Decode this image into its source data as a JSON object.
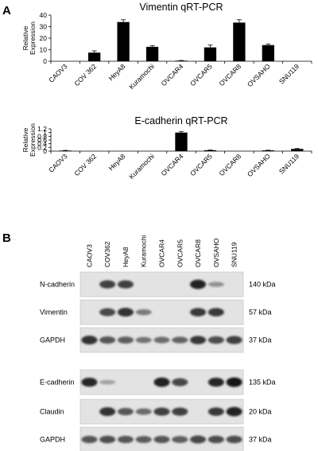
{
  "panels": {
    "a_label": "A",
    "b_label": "B"
  },
  "chart_data": [
    {
      "type": "bar",
      "title": "Vimentin qRT-PCR",
      "ylabel": "Relative Expression",
      "ylabel_lines": [
        "Relative",
        "Expression"
      ],
      "categories": [
        "CAOV3",
        "COV 362",
        "HeyA8",
        "Kuramochi",
        "OVCAR4",
        "OVCAR5",
        "OVCAR8",
        "OVSAHO",
        "SNU119"
      ],
      "values": [
        0,
        7.5,
        34,
        12.5,
        0.5,
        12,
        33.5,
        14,
        0
      ],
      "errors": [
        0,
        1.5,
        2,
        1,
        0.2,
        2,
        2.5,
        1,
        0
      ],
      "ylim": [
        0,
        40
      ],
      "yticks": [
        0,
        10,
        20,
        30,
        40
      ],
      "ytick_labels": [
        "0",
        "10",
        "20",
        "30",
        "40"
      ],
      "grid": false,
      "bar_color": "#000000"
    },
    {
      "type": "bar",
      "title": "E-cadherin qRT-PCR",
      "ylabel": "Relative Expression",
      "ylabel_lines": [
        "Relative",
        "Expression"
      ],
      "categories": [
        "CAOV3",
        "COV 362",
        "HeyA8",
        "Kuramochi",
        "OVCAR4",
        "OVCAR5",
        "OVCAR8",
        "OVSAHO",
        "SNU119"
      ],
      "values": [
        0.03,
        0,
        0,
        0,
        1.0,
        0.05,
        0,
        0.04,
        0.12
      ],
      "errors": [
        0.01,
        0,
        0,
        0,
        0.06,
        0.01,
        0,
        0.01,
        0.02
      ],
      "ylim": [
        0,
        1.2
      ],
      "yticks": [
        0,
        0.2,
        0.4,
        0.6,
        0.8,
        1.0,
        1.2
      ],
      "ytick_labels": [
        "0",
        "0.2",
        "0.4",
        "0.6",
        "0.8",
        "1",
        "1.2"
      ],
      "grid": false,
      "bar_color": "#000000"
    }
  ],
  "blot": {
    "lanes": [
      "CAOV3",
      "COV362",
      "HeyA8",
      "Kuramochi",
      "OVCAR4",
      "OVCAR5",
      "OVCAR8",
      "OVSAHO",
      "SNU119"
    ],
    "rows": [
      {
        "protein": "N-cadherin",
        "size": "140 kDa",
        "levels": [
          0,
          0.75,
          0.75,
          0,
          0,
          0,
          0.95,
          0.2,
          0
        ]
      },
      {
        "protein": "Vimentin",
        "size": "57 kDa",
        "levels": [
          0,
          0.7,
          0.85,
          0.35,
          0,
          0,
          0.8,
          0.8,
          0
        ]
      },
      {
        "protein": "GAPDH",
        "size": "37 kDa",
        "levels": [
          0.85,
          0.6,
          0.55,
          0.4,
          0.45,
          0.5,
          0.8,
          0.65,
          0.75
        ]
      },
      {
        "protein": "E-cadherin",
        "size": "135 kDa",
        "levels": [
          0.9,
          0.1,
          0,
          0,
          0.95,
          0.7,
          0,
          0.9,
          1.0
        ]
      },
      {
        "protein": "Claudin",
        "size": "20 kDa",
        "levels": [
          0,
          0.85,
          0.6,
          0.45,
          0.75,
          0.75,
          0,
          0.8,
          0.95
        ]
      },
      {
        "protein": "GAPDH",
        "size": "37 kDa",
        "levels": [
          0.6,
          0.65,
          0.6,
          0.55,
          0.6,
          0.55,
          0.7,
          0.65,
          0.65
        ]
      }
    ]
  }
}
